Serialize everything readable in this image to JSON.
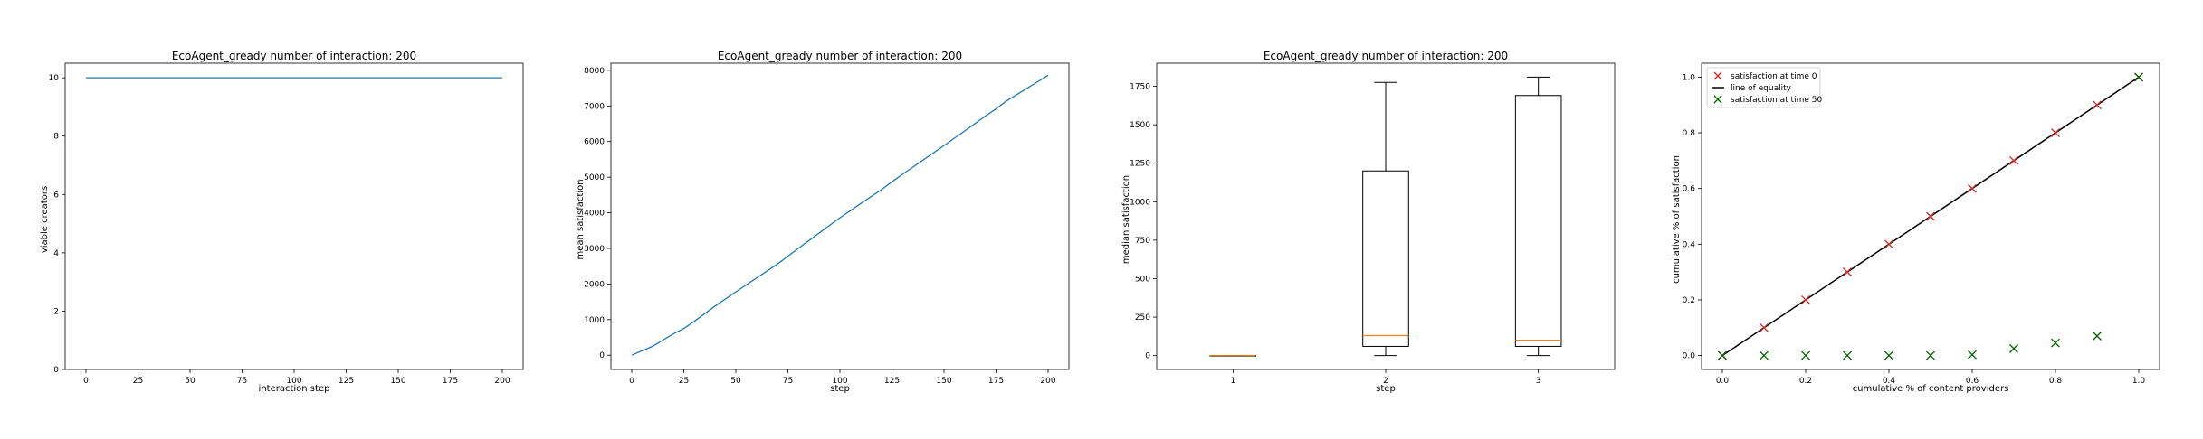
{
  "chart_data": [
    {
      "type": "line",
      "title": "EcoAgent_gready number of interaction: 200",
      "xlabel": "interaction step",
      "ylabel": "viable creators",
      "xlim": [
        -10,
        210
      ],
      "ylim": [
        0,
        10.5
      ],
      "xticks": [
        0,
        25,
        50,
        75,
        100,
        125,
        150,
        175,
        200
      ],
      "yticks": [
        0,
        2,
        4,
        6,
        8,
        10
      ],
      "series": [
        {
          "x": [
            0,
            200
          ],
          "y": [
            10,
            10
          ],
          "color": "#1f77b4"
        }
      ]
    },
    {
      "type": "line",
      "title": "EcoAgent_gready number of interaction: 200",
      "xlabel": "step",
      "ylabel": "mean satisfaction",
      "xlim": [
        -10,
        210
      ],
      "ylim": [
        -400,
        8200
      ],
      "xticks": [
        0,
        25,
        50,
        75,
        100,
        125,
        150,
        175,
        200
      ],
      "yticks": [
        0,
        1000,
        2000,
        3000,
        4000,
        5000,
        6000,
        7000,
        8000
      ],
      "series": [
        {
          "x": [
            0,
            10,
            20,
            25,
            30,
            40,
            50,
            60,
            70,
            75,
            80,
            90,
            100,
            110,
            120,
            125,
            130,
            140,
            150,
            160,
            170,
            175,
            180,
            190,
            200
          ],
          "y": [
            0,
            250,
            600,
            750,
            950,
            1380,
            1780,
            2170,
            2560,
            2780,
            3000,
            3430,
            3860,
            4260,
            4650,
            4870,
            5080,
            5480,
            5890,
            6300,
            6720,
            6920,
            7140,
            7500,
            7860
          ],
          "color": "#1f77b4"
        }
      ]
    },
    {
      "type": "box",
      "title": "EcoAgent_gready number of interaction: 200",
      "xlabel": "step",
      "ylabel": "median satisfaction",
      "xlim": [
        0.5,
        3.5
      ],
      "ylim": [
        -90,
        1900
      ],
      "xticks": [
        1,
        2,
        3
      ],
      "yticks": [
        0,
        250,
        500,
        750,
        1000,
        1250,
        1500,
        1750
      ],
      "boxes": [
        {
          "x": 1,
          "whislo": 0,
          "q1": 0,
          "med": 0,
          "q3": 0,
          "whishi": 0
        },
        {
          "x": 2,
          "whislo": 0,
          "q1": 60,
          "med": 130,
          "q3": 1200,
          "whishi": 1775
        },
        {
          "x": 3,
          "whislo": 0,
          "q1": 60,
          "med": 100,
          "q3": 1690,
          "whishi": 1810
        }
      ],
      "box_color": "#000000",
      "median_color": "#ff7f0e"
    },
    {
      "type": "scatter",
      "title": "",
      "xlabel": "cumulative % of content providers",
      "ylabel": "cumulative % of satisfaction",
      "xlim": [
        -0.05,
        1.05
      ],
      "ylim": [
        -0.05,
        1.05
      ],
      "xticks": [
        0.0,
        0.2,
        0.4,
        0.6,
        0.8,
        1.0
      ],
      "yticks": [
        0.0,
        0.2,
        0.4,
        0.6,
        0.8,
        1.0
      ],
      "legend_position": "upper-left",
      "series": [
        {
          "name": "satisfaction at time 0",
          "marker": "x",
          "color": "#d62728",
          "x": [
            0.0,
            0.1,
            0.2,
            0.3,
            0.4,
            0.5,
            0.6,
            0.7,
            0.8,
            0.9,
            1.0
          ],
          "y": [
            0.0,
            0.1,
            0.2,
            0.3,
            0.4,
            0.5,
            0.6,
            0.7,
            0.8,
            0.9,
            1.0
          ]
        },
        {
          "name": "line of equality",
          "marker": "line",
          "color": "#000000",
          "x": [
            0.0,
            1.0
          ],
          "y": [
            0.0,
            1.0
          ]
        },
        {
          "name": "satisfaction at time 50",
          "marker": "x",
          "color": "#006400",
          "x": [
            0.0,
            0.1,
            0.2,
            0.3,
            0.4,
            0.5,
            0.6,
            0.7,
            0.8,
            0.9,
            1.0
          ],
          "y": [
            0.0,
            0.0,
            0.0,
            0.0,
            0.0,
            0.0,
            0.003,
            0.025,
            0.045,
            0.07,
            1.0
          ]
        }
      ]
    }
  ]
}
